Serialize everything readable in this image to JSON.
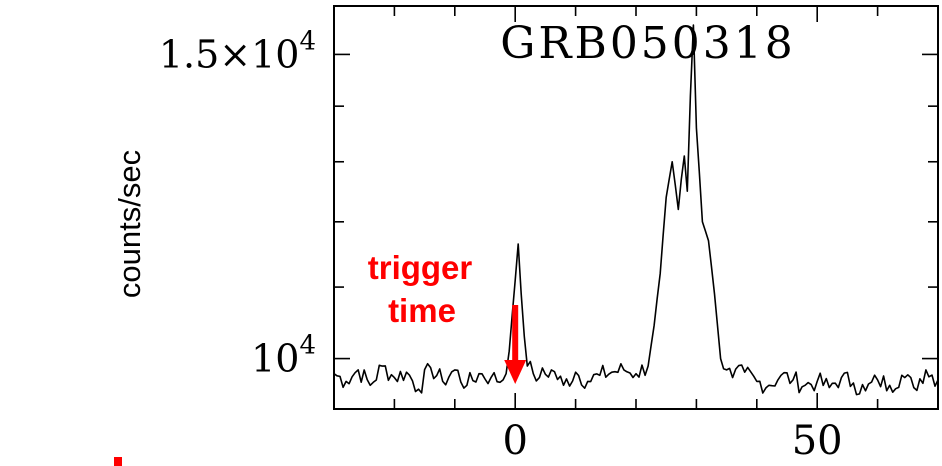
{
  "chart_data": {
    "type": "line",
    "title": "GRB050318",
    "xlabel": "",
    "ylabel": "counts/sec",
    "xlim": [
      -30,
      70
    ],
    "ylim": [
      9350,
      16000
    ],
    "log_y": true,
    "x_ticks": [
      {
        "value": 0,
        "label": "0"
      },
      {
        "value": 50,
        "label": "50"
      }
    ],
    "y_ticks": [
      {
        "value": 10000,
        "label_base": "10",
        "label_exp": "4"
      },
      {
        "value": 15000,
        "label_base": "1.5×10",
        "label_exp": "4"
      }
    ],
    "annotation": {
      "lines": [
        "trigger",
        "time"
      ],
      "x": 0,
      "color": "#ff0000"
    },
    "series": [
      {
        "x": [
          -30,
          -28,
          -26,
          -24,
          -22,
          -20,
          -18,
          -16,
          -14,
          -12,
          -10,
          -8,
          -6,
          -4,
          -2,
          -1,
          0,
          0.5,
          1,
          1.5,
          2,
          3,
          4,
          6,
          8,
          10,
          12,
          14,
          16,
          18,
          20,
          22,
          23,
          24,
          25,
          26,
          27,
          27.5,
          28,
          28.5,
          29,
          29.5,
          30,
          30.5,
          31,
          32,
          33,
          34,
          35,
          36,
          38,
          40,
          42,
          44,
          46,
          48,
          50,
          52,
          54,
          56,
          58,
          60,
          62,
          64,
          66,
          68,
          70
        ],
        "y": [
          9800,
          9700,
          9850,
          9650,
          9900,
          9750,
          9820,
          9600,
          9880,
          9700,
          9850,
          9650,
          9800,
          9750,
          9720,
          10100,
          11100,
          11650,
          10900,
          10300,
          9900,
          9800,
          9750,
          9850,
          9650,
          9820,
          9700,
          9780,
          9820,
          9850,
          9800,
          9900,
          10450,
          11200,
          12400,
          13000,
          12200,
          12700,
          13100,
          12500,
          14200,
          15600,
          13600,
          12800,
          12000,
          11700,
          10900,
          10000,
          9850,
          9750,
          9820,
          9700,
          9650,
          9780,
          9720,
          9650,
          9700,
          9620,
          9750,
          9680,
          9580,
          9720,
          9650,
          9780,
          9620,
          9850,
          9720
        ]
      }
    ]
  }
}
